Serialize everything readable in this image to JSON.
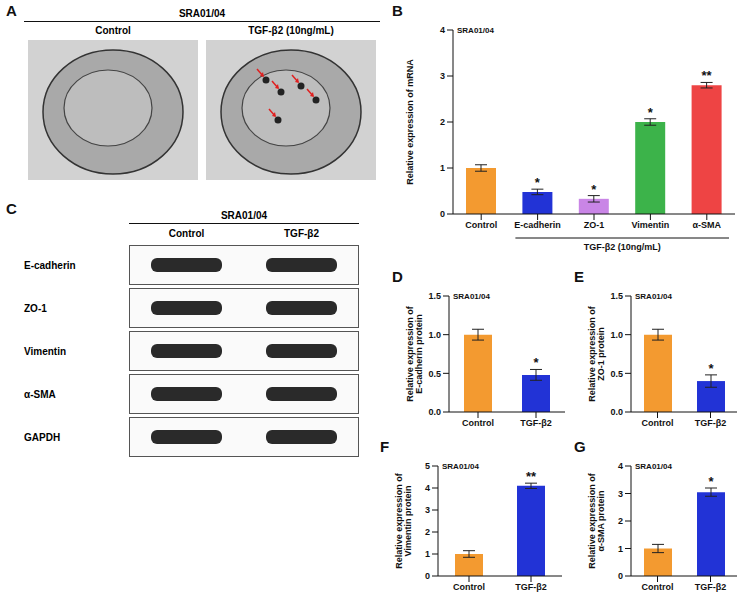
{
  "panel_A": {
    "letter": "A",
    "header": "SRA01/04",
    "columns": [
      "Control",
      "TGF-β2 (10ng/mL)"
    ]
  },
  "panel_C": {
    "letter": "C",
    "header": "SRA01/04",
    "columns": [
      "Control",
      "TGF-β2"
    ],
    "rows": [
      "E-cadherin",
      "ZO-1",
      "Vimentin",
      "α-SMA",
      "GAPDH"
    ]
  },
  "chart_data": [
    {
      "panel": "B",
      "type": "bar",
      "title": "SRA01/04",
      "y_label": "Relative expression of mRNA",
      "categories": [
        "Control",
        "E-cadherin",
        "ZO-1",
        "Vimentin",
        "α-SMA"
      ],
      "values": [
        1.0,
        0.48,
        0.33,
        2.0,
        2.8
      ],
      "errors": [
        0.07,
        0.06,
        0.07,
        0.07,
        0.06
      ],
      "significance": [
        null,
        "*",
        "*",
        "*",
        "**"
      ],
      "group_label": "TGF-β2 (10ng/mL)",
      "colors": [
        "#f39a30",
        "#2233d6",
        "#c985e6",
        "#3cb34a",
        "#ee4444"
      ],
      "ylim": [
        0,
        4
      ],
      "yticks": [
        0,
        1,
        2,
        3,
        4
      ],
      "grid": false
    },
    {
      "panel": "D",
      "type": "bar",
      "title": "SRA01/04",
      "y_label": "Relative expression of E-cadherin protein",
      "categories": [
        "Control",
        "TGF-β2"
      ],
      "values": [
        1.0,
        0.48
      ],
      "errors": [
        0.07,
        0.07
      ],
      "significance": [
        null,
        "*"
      ],
      "colors": [
        "#f39a30",
        "#2233d6"
      ],
      "ylim": [
        0,
        1.5
      ],
      "yticks": [
        {
          "value": 0,
          "label": "0.0"
        },
        {
          "value": 0.5,
          "label": "0.5"
        },
        {
          "value": 1,
          "label": "1.0"
        },
        {
          "value": 1.5,
          "label": "1.5"
        }
      ],
      "grid": false
    },
    {
      "panel": "E",
      "type": "bar",
      "title": "SRA01/04",
      "y_label": "Relative expression of ZO-1 protein",
      "categories": [
        "Control",
        "TGF-β2"
      ],
      "values": [
        1.0,
        0.4
      ],
      "errors": [
        0.07,
        0.08
      ],
      "significance": [
        null,
        "*"
      ],
      "colors": [
        "#f39a30",
        "#2233d6"
      ],
      "ylim": [
        0,
        1.5
      ],
      "yticks": [
        {
          "value": 0,
          "label": "0.0"
        },
        {
          "value": 0.5,
          "label": "0.5"
        },
        {
          "value": 1,
          "label": "1.0"
        },
        {
          "value": 1.5,
          "label": "1.5"
        }
      ],
      "grid": false
    },
    {
      "panel": "F",
      "type": "bar",
      "title": "SRA01/04",
      "y_label": "Relative expression of Vimentin protein",
      "categories": [
        "Control",
        "TGF-β2"
      ],
      "values": [
        1.0,
        4.1
      ],
      "errors": [
        0.15,
        0.12
      ],
      "significance": [
        null,
        "**"
      ],
      "colors": [
        "#f39a30",
        "#2233d6"
      ],
      "ylim": [
        0,
        5
      ],
      "yticks": [
        0,
        1,
        2,
        3,
        4,
        5
      ],
      "grid": false
    },
    {
      "panel": "G",
      "type": "bar",
      "title": "SRA01/04",
      "y_label": "Relative expression of α-SMA protein",
      "categories": [
        "Control",
        "TGF-β2"
      ],
      "values": [
        1.0,
        3.05
      ],
      "errors": [
        0.15,
        0.15
      ],
      "significance": [
        null,
        "*"
      ],
      "colors": [
        "#f39a30",
        "#2233d6"
      ],
      "ylim": [
        0,
        4
      ],
      "yticks": [
        0,
        1,
        2,
        3,
        4
      ],
      "grid": false
    }
  ]
}
